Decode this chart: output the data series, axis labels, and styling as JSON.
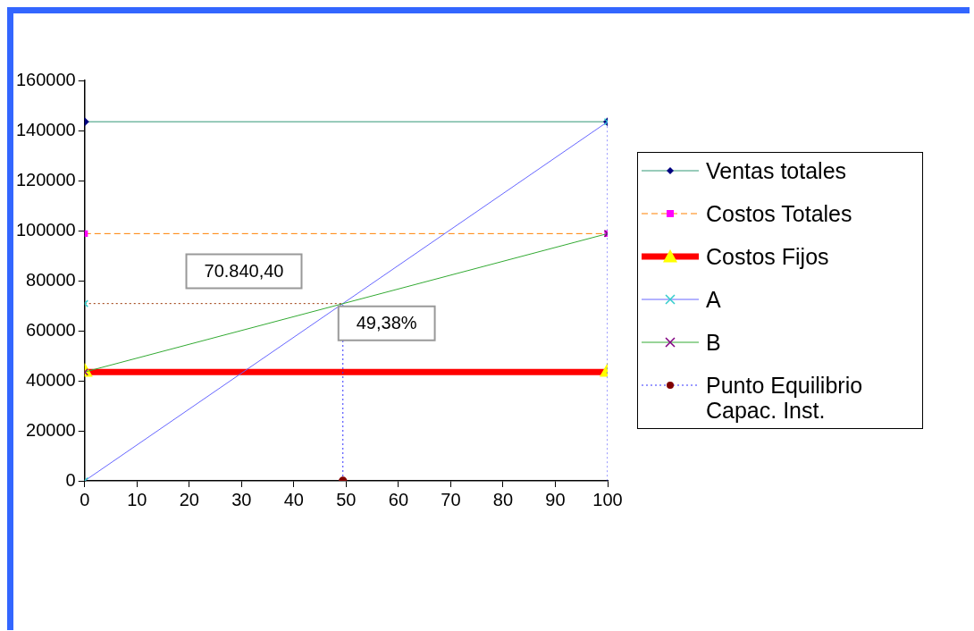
{
  "chart_data": {
    "type": "line",
    "xlim": [
      0,
      100
    ],
    "xticks": [
      0,
      10,
      20,
      30,
      40,
      50,
      60,
      70,
      80,
      90,
      100
    ],
    "ylim": [
      0,
      160000
    ],
    "yticks": [
      0,
      20000,
      40000,
      60000,
      80000,
      100000,
      120000,
      140000,
      160000
    ],
    "grid": false,
    "legend": "right",
    "series": [
      {
        "name": "Ventas totales",
        "color": "#339977",
        "colors": [
          "#000080",
          "#000080"
        ],
        "marker": "diamond",
        "line_style": "solid",
        "x": [
          0,
          100
        ],
        "values": [
          143500,
          143500
        ]
      },
      {
        "name": "Costos Totales",
        "color": "#ff8000",
        "colors": [
          "#ff00ff",
          "#ff00ff"
        ],
        "marker": "square",
        "line_style": "dashed",
        "x": [
          0,
          100
        ],
        "values": [
          98800,
          98800
        ]
      },
      {
        "name": "Costos Fijos",
        "color": "#ff0000",
        "colors": [
          "#ffff00",
          "#ffff00"
        ],
        "marker": "triangle",
        "line_style": "solid",
        "x": [
          0,
          100
        ],
        "values": [
          43500,
          43500
        ]
      },
      {
        "name": "A",
        "color": "#6666ff",
        "colors": [
          "#33cccc",
          "#33cccc"
        ],
        "marker": "cross",
        "line_style": "solid",
        "x": [
          0,
          100
        ],
        "values": [
          0,
          143500
        ]
      },
      {
        "name": "B",
        "color": "#33aa33",
        "colors": [
          "#800080",
          "#800080"
        ],
        "marker": "cross",
        "line_style": "solid",
        "x": [
          0,
          100
        ],
        "values": [
          43500,
          98800
        ]
      },
      {
        "name": "Punto Equilibrio Capac. Inst.",
        "color": "#3333ff",
        "colors": [
          "#800000",
          null
        ],
        "marker": "circle",
        "line_style": "dotted",
        "x": [
          49.38,
          49.38
        ],
        "values": [
          0,
          70840
        ]
      },
      {
        "color": "#3333ff",
        "marker": "none",
        "line_style": "dotted",
        "x": [
          100,
          100
        ],
        "values": [
          143500,
          0
        ]
      },
      {
        "color": "#993300",
        "colors": [
          "#33cccc",
          null
        ],
        "marker": "cross",
        "line_style": "dotted",
        "x": [
          0,
          49.38
        ],
        "values": [
          70840,
          70840
        ]
      }
    ],
    "annotations": [
      "70.840,40",
      {
        "text": "49,38%",
        "x": 49.38,
        "y": 70840
      }
    ]
  }
}
